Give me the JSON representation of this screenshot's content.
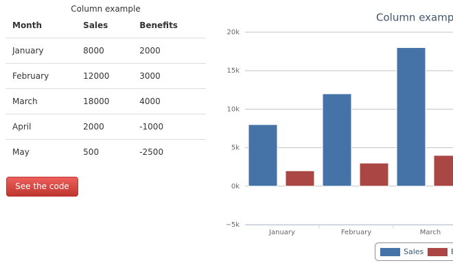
{
  "table": {
    "caption": "Column example",
    "columns": [
      "Month",
      "Sales",
      "Benefits"
    ],
    "rows": [
      [
        "January",
        "8000",
        "2000"
      ],
      [
        "February",
        "12000",
        "3000"
      ],
      [
        "March",
        "18000",
        "4000"
      ],
      [
        "April",
        "2000",
        "-1000"
      ],
      [
        "May",
        "500",
        "-2500"
      ]
    ]
  },
  "button": "See the code",
  "chart_data": {
    "type": "bar",
    "title": "Column examp",
    "categories": [
      "January",
      "February",
      "March"
    ],
    "series": [
      {
        "name": "Sales",
        "color": "#4572a7",
        "values": [
          8000,
          12000,
          18000
        ]
      },
      {
        "name": "Benefits",
        "color": "#aa4643",
        "values": [
          2000,
          3000,
          4000
        ]
      }
    ],
    "ylim": [
      -5000,
      20000
    ],
    "yticks": [
      {
        "value": -5000,
        "label": "−5k"
      },
      {
        "value": 0,
        "label": "0k"
      },
      {
        "value": 5000,
        "label": "5k"
      },
      {
        "value": 10000,
        "label": "10k"
      },
      {
        "value": 15000,
        "label": "15k"
      },
      {
        "value": 20000,
        "label": "20k"
      }
    ],
    "grid": true
  }
}
